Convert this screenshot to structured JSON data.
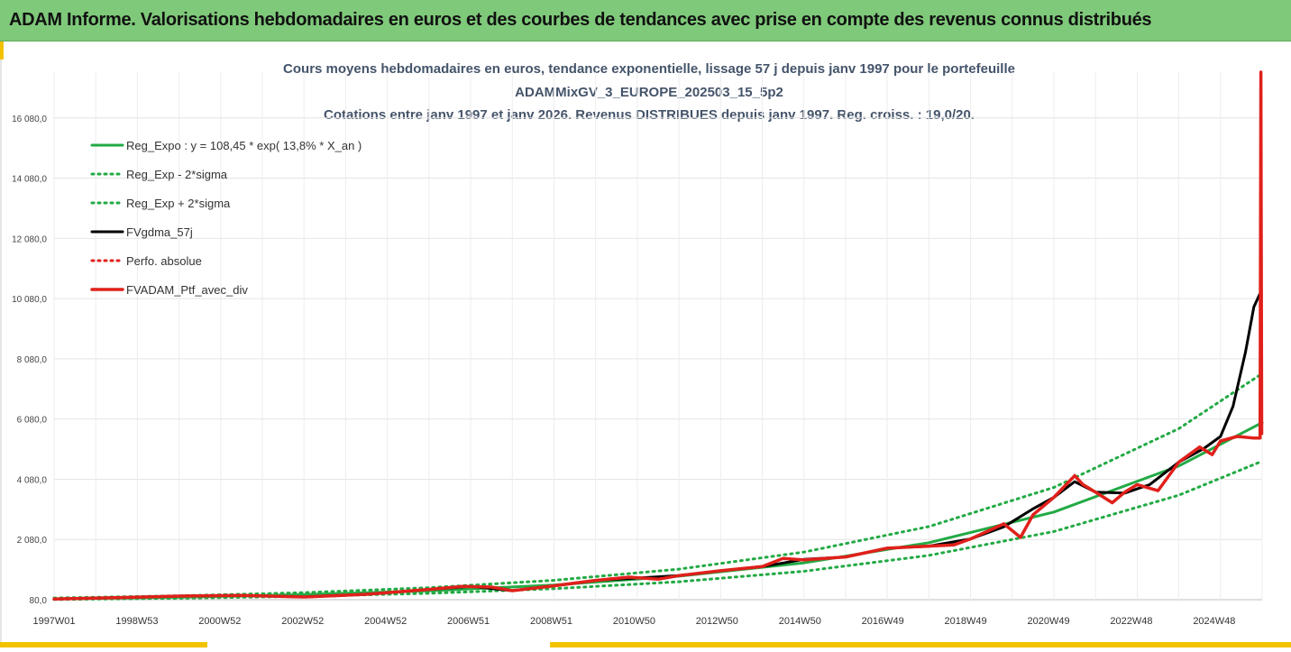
{
  "banner": {
    "title": "ADAM Informe. Valorisations hebdomadaires en euros et des courbes de tendances avec prise en compte des revenus connus distribués"
  },
  "colors": {
    "banner_bg": "#7fc97a",
    "accent": "#f2c200",
    "reg_expo": "#22aa44",
    "sigma": "#22aa44",
    "fvgdma": "#000000",
    "perfo": "#e0201b",
    "fvadam": "#e0201b"
  },
  "chart_data": {
    "type": "line",
    "title": "Cours moyens hebdomadaires en euros, tendance exponentielle, lissage 57 j depuis janv 1997 pour le portefeuille",
    "subtitle": "ADAMMixGV_3_EUROPE_202503_15_5p2",
    "subtitle2": "Cotations entre janv 1997 et janv 2026. Revenus DISTRIBUES depuis janv 1997. Reg. croiss. : 19,0/20.",
    "x_tick_labels": [
      "1997W01",
      "1998W53",
      "2000W52",
      "2002W52",
      "2004W52",
      "2006W51",
      "2008W51",
      "2010W50",
      "2012W50",
      "2014W50",
      "2016W49",
      "2018W49",
      "2020W49",
      "2022W48",
      "2024W48"
    ],
    "y_ticks": [
      80,
      2080,
      4080,
      6080,
      8080,
      10080,
      12080,
      14080,
      16080
    ],
    "y_tick_labels": [
      "80,0",
      "2 080,0",
      "4 080,0",
      "6 080,0",
      "8 080,0",
      "10 080,0",
      "12 080,0",
      "14 080,0",
      "16 080,0"
    ],
    "ylim": [
      80,
      17600
    ],
    "xlim": [
      1997.0,
      2026.0
    ],
    "grid": true,
    "legend_position": "top-left",
    "series": [
      {
        "name": "Reg_Expo : y = 108,45 * exp( 13,8% *  X_an )",
        "style": "solid",
        "color": "#22aa44",
        "x": [
          1997.0,
          2000.0,
          2003.0,
          2006.0,
          2009.0,
          2012.0,
          2015.0,
          2018.0,
          2021.0,
          2024.0,
          2026.0
        ],
        "y": [
          108,
          164,
          248,
          375,
          568,
          861,
          1303,
          1973,
          2990,
          4520,
          5960
        ]
      },
      {
        "name": "Reg_Exp - 2*sigma",
        "style": "dotted",
        "color": "#22aa44",
        "x": [
          1997.0,
          2000.0,
          2003.0,
          2006.0,
          2009.0,
          2012.0,
          2015.0,
          2018.0,
          2021.0,
          2024.0,
          2026.0
        ],
        "y": [
          85,
          128,
          194,
          294,
          446,
          676,
          1023,
          1549,
          2345,
          3550,
          4680
        ]
      },
      {
        "name": "Reg_Exp + 2*sigma",
        "style": "dotted",
        "color": "#22aa44",
        "x": [
          1997.0,
          2000.0,
          2003.0,
          2006.0,
          2009.0,
          2012.0,
          2015.0,
          2018.0,
          2021.0,
          2024.0,
          2026.0
        ],
        "y": [
          137,
          208,
          315,
          477,
          723,
          1095,
          1660,
          2510,
          3810,
          5760,
          7590
        ]
      },
      {
        "name": "FVgdma_57j",
        "style": "solid",
        "color": "#000000",
        "x": [
          1997.0,
          1998.5,
          2000.0,
          2001.5,
          2003.0,
          2004.5,
          2006.0,
          2007.0,
          2008.0,
          2009.0,
          2010.0,
          2011.0,
          2012.0,
          2013.0,
          2014.0,
          2015.0,
          2016.0,
          2017.0,
          2018.0,
          2019.0,
          2019.8,
          2020.5,
          2021.0,
          2021.5,
          2022.0,
          2022.7,
          2023.3,
          2024.0,
          2024.6,
          2025.0,
          2025.3,
          2025.6,
          2025.8,
          2025.95
        ],
        "y": [
          100,
          150,
          200,
          220,
          170,
          260,
          420,
          520,
          380,
          540,
          720,
          800,
          880,
          1040,
          1180,
          1420,
          1500,
          1790,
          1860,
          2100,
          2500,
          3100,
          3480,
          4000,
          3650,
          3620,
          3900,
          4650,
          5100,
          5500,
          6500,
          8300,
          9800,
          10250
        ]
      },
      {
        "name": "Perfo. absolue",
        "style": "dotted",
        "color": "#e0201b",
        "x": [],
        "y": []
      },
      {
        "name": "FVADAM_Ptf_avec_div",
        "style": "solid-thick",
        "color": "#e0201b",
        "x": [
          1997.0,
          1998.5,
          2000.0,
          2001.5,
          2003.0,
          2004.5,
          2006.0,
          2006.8,
          2007.5,
          2008.0,
          2009.0,
          2010.0,
          2010.8,
          2011.5,
          2012.0,
          2013.0,
          2014.0,
          2014.5,
          2015.0,
          2016.0,
          2017.0,
          2018.0,
          2018.6,
          2019.0,
          2019.8,
          2020.2,
          2020.5,
          2021.0,
          2021.5,
          2021.7,
          2022.0,
          2022.4,
          2022.7,
          2023.0,
          2023.5,
          2024.0,
          2024.5,
          2024.8,
          2025.0,
          2025.4,
          2025.8,
          2025.95,
          2025.97,
          2025.99
        ],
        "y": [
          100,
          150,
          200,
          220,
          170,
          260,
          420,
          520,
          500,
          380,
          540,
          720,
          830,
          760,
          880,
          1040,
          1180,
          1450,
          1400,
          1500,
          1790,
          1860,
          1900,
          2100,
          2600,
          2150,
          2900,
          3480,
          4200,
          3900,
          3650,
          3300,
          3650,
          3900,
          3700,
          4650,
          5150,
          4900,
          5350,
          5500,
          5450,
          5450,
          17600,
          5600
        ]
      }
    ]
  }
}
